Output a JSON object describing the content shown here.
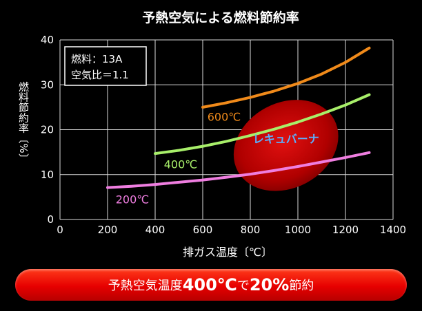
{
  "chart_data": {
    "type": "line",
    "title": "予熱空気による燃料節約率",
    "xlabel": "排ガス温度〔℃〕",
    "ylabel": "燃料節約率〔%〕",
    "xlim": [
      0,
      1400
    ],
    "ylim": [
      0,
      40
    ],
    "xticks": [
      "0",
      "200",
      "400",
      "600",
      "800",
      "1000",
      "1200",
      "1400"
    ],
    "yticks": [
      "0",
      "10",
      "20",
      "30",
      "40"
    ],
    "grid": true,
    "info_box": [
      "燃料：13A",
      "空気比＝1.1"
    ],
    "series": [
      {
        "name": "600℃",
        "color": "#f08a1a",
        "x": [
          600,
          700,
          800,
          900,
          1000,
          1100,
          1200,
          1300
        ],
        "y": [
          25.0,
          26.0,
          27.2,
          28.6,
          30.3,
          32.4,
          35.0,
          38.2
        ]
      },
      {
        "name": "400℃",
        "color": "#a8ef6a",
        "x": [
          400,
          500,
          600,
          700,
          800,
          900,
          1000,
          1100,
          1200,
          1300
        ],
        "y": [
          14.7,
          15.4,
          16.3,
          17.4,
          18.7,
          20.1,
          21.7,
          23.5,
          25.5,
          27.8
        ]
      },
      {
        "name": "200℃",
        "color": "#ef7ee0",
        "x": [
          200,
          300,
          400,
          500,
          600,
          700,
          800,
          900,
          1000,
          1100,
          1200,
          1300
        ],
        "y": [
          7.1,
          7.4,
          7.8,
          8.3,
          8.8,
          9.4,
          10.1,
          10.9,
          11.8,
          12.8,
          13.8,
          14.9
        ]
      }
    ],
    "region": {
      "label": "レキュバーナ",
      "cx": 950,
      "cy": 16.5,
      "rx": 230,
      "ry": 9.5,
      "rotate_deg": -28,
      "color": "#cc0000",
      "label_color": "#5ab0ff"
    },
    "colors": {
      "background": "#000000",
      "grid": "#dddddd",
      "text": "#ffffff"
    }
  },
  "banner": {
    "part1": "予熱空気温度",
    "part2": "400℃",
    "part3": "で",
    "part4": "20%",
    "part5": "節約"
  }
}
